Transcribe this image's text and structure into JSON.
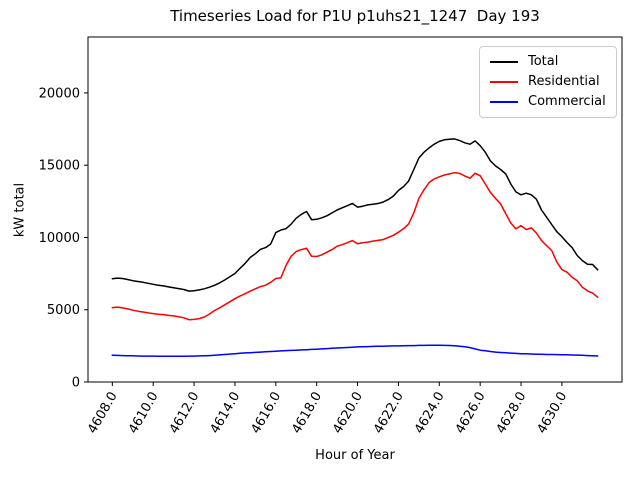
{
  "figure": {
    "title": "Timeseries Load for P1U p1uhs21_1247  Day 193",
    "xlabel": "Hour of Year",
    "ylabel": "kW total"
  },
  "legend": {
    "position": "upper right",
    "items": [
      {
        "label": "Total",
        "color": "#000000"
      },
      {
        "label": "Residential",
        "color": "#ff0000"
      },
      {
        "label": "Commercial",
        "color": "#0000ff"
      }
    ]
  },
  "chart_data": {
    "type": "line",
    "title": "Timeseries Load for P1U p1uhs21_1247  Day 193",
    "xlabel": "Hour of Year",
    "ylabel": "kW total",
    "grid": false,
    "legend_position": "upper right",
    "xlim": [
      4606.81,
      4632.94
    ],
    "ylim": [
      0,
      23870
    ],
    "xticks": [
      4608,
      4610,
      4612,
      4614,
      4616,
      4618,
      4620,
      4622,
      4624,
      4626,
      4628,
      4630
    ],
    "xtick_labels": [
      "4608.0",
      "4610.0",
      "4612.0",
      "4614.0",
      "4616.0",
      "4618.0",
      "4620.0",
      "4622.0",
      "4624.0",
      "4626.0",
      "4628.0",
      "4630.0"
    ],
    "yticks": [
      0,
      5000,
      10000,
      15000,
      20000
    ],
    "ytick_labels": [
      "0",
      "5000",
      "10000",
      "15000",
      "20000"
    ],
    "x": [
      4608.0,
      4608.25,
      4608.5,
      4608.75,
      4609.0,
      4609.25,
      4609.5,
      4609.75,
      4610.0,
      4610.25,
      4610.5,
      4610.75,
      4611.0,
      4611.25,
      4611.5,
      4611.75,
      4612.0,
      4612.25,
      4612.5,
      4612.75,
      4613.0,
      4613.25,
      4613.5,
      4613.75,
      4614.0,
      4614.25,
      4614.5,
      4614.75,
      4615.0,
      4615.25,
      4615.5,
      4615.75,
      4616.0,
      4616.25,
      4616.5,
      4616.75,
      4617.0,
      4617.25,
      4617.5,
      4617.75,
      4618.0,
      4618.25,
      4618.5,
      4618.75,
      4619.0,
      4619.25,
      4619.5,
      4619.75,
      4620.0,
      4620.25,
      4620.5,
      4620.75,
      4621.0,
      4621.25,
      4621.5,
      4621.75,
      4622.0,
      4622.25,
      4622.5,
      4622.75,
      4623.0,
      4623.25,
      4623.5,
      4623.75,
      4624.0,
      4624.25,
      4624.5,
      4624.75,
      4625.0,
      4625.25,
      4625.5,
      4625.75,
      4626.0,
      4626.25,
      4626.5,
      4626.75,
      4627.0,
      4627.25,
      4627.5,
      4627.75,
      4628.0,
      4628.25,
      4628.5,
      4628.75,
      4629.0,
      4629.25,
      4629.5,
      4629.75,
      4630.0,
      4630.25,
      4630.5,
      4630.75,
      4631.0,
      4631.25,
      4631.5,
      4631.75
    ],
    "series": [
      {
        "name": "Total",
        "color": "#000000",
        "values": [
          7150,
          7190,
          7160,
          7090,
          7010,
          6950,
          6900,
          6830,
          6760,
          6700,
          6650,
          6580,
          6520,
          6460,
          6400,
          6290,
          6320,
          6370,
          6450,
          6560,
          6690,
          6860,
          7060,
          7280,
          7510,
          7860,
          8210,
          8620,
          8880,
          9180,
          9300,
          9550,
          10340,
          10520,
          10610,
          10920,
          11330,
          11600,
          11800,
          11230,
          11260,
          11360,
          11500,
          11700,
          11900,
          12050,
          12200,
          12350,
          12100,
          12160,
          12250,
          12300,
          12350,
          12450,
          12620,
          12860,
          13250,
          13520,
          13900,
          14700,
          15500,
          15900,
          16200,
          16450,
          16650,
          16760,
          16800,
          16820,
          16700,
          16550,
          16450,
          16680,
          16350,
          15900,
          15300,
          14950,
          14700,
          14400,
          13700,
          13150,
          12950,
          13060,
          12950,
          12650,
          11900,
          11400,
          10900,
          10400,
          10050,
          9650,
          9300,
          8750,
          8400,
          8150,
          8130,
          7760
        ]
      },
      {
        "name": "Residential",
        "color": "#ff0000",
        "values": [
          5150,
          5180,
          5130,
          5060,
          4970,
          4900,
          4840,
          4780,
          4730,
          4690,
          4660,
          4610,
          4570,
          4510,
          4440,
          4310,
          4330,
          4390,
          4500,
          4700,
          4950,
          5130,
          5340,
          5550,
          5760,
          5940,
          6110,
          6290,
          6450,
          6600,
          6700,
          6900,
          7160,
          7200,
          8060,
          8700,
          9030,
          9160,
          9255,
          8700,
          8680,
          8800,
          8980,
          9160,
          9395,
          9500,
          9640,
          9785,
          9570,
          9630,
          9680,
          9750,
          9800,
          9850,
          10000,
          10150,
          10360,
          10600,
          10940,
          11700,
          12700,
          13300,
          13800,
          14050,
          14200,
          14320,
          14400,
          14480,
          14430,
          14250,
          14100,
          14440,
          14270,
          13700,
          13120,
          12700,
          12320,
          11650,
          11000,
          10590,
          10820,
          10550,
          10660,
          10300,
          9790,
          9440,
          9100,
          8300,
          7780,
          7600,
          7250,
          7000,
          6550,
          6300,
          6150,
          5870
        ]
      },
      {
        "name": "Commercial",
        "color": "#0000ff",
        "values": [
          1850,
          1840,
          1830,
          1820,
          1810,
          1800,
          1795,
          1790,
          1790,
          1785,
          1780,
          1780,
          1780,
          1780,
          1785,
          1790,
          1795,
          1805,
          1815,
          1830,
          1850,
          1875,
          1900,
          1930,
          1960,
          1985,
          2010,
          2030,
          2050,
          2070,
          2090,
          2110,
          2130,
          2150,
          2170,
          2185,
          2200,
          2220,
          2235,
          2255,
          2270,
          2290,
          2310,
          2330,
          2350,
          2370,
          2390,
          2410,
          2430,
          2440,
          2450,
          2460,
          2470,
          2480,
          2490,
          2495,
          2500,
          2510,
          2515,
          2520,
          2530,
          2535,
          2540,
          2540,
          2540,
          2535,
          2525,
          2510,
          2480,
          2440,
          2380,
          2290,
          2200,
          2160,
          2110,
          2070,
          2040,
          2020,
          2000,
          1980,
          1960,
          1950,
          1935,
          1925,
          1915,
          1905,
          1905,
          1895,
          1890,
          1880,
          1870,
          1860,
          1845,
          1830,
          1815,
          1800
        ]
      }
    ]
  }
}
